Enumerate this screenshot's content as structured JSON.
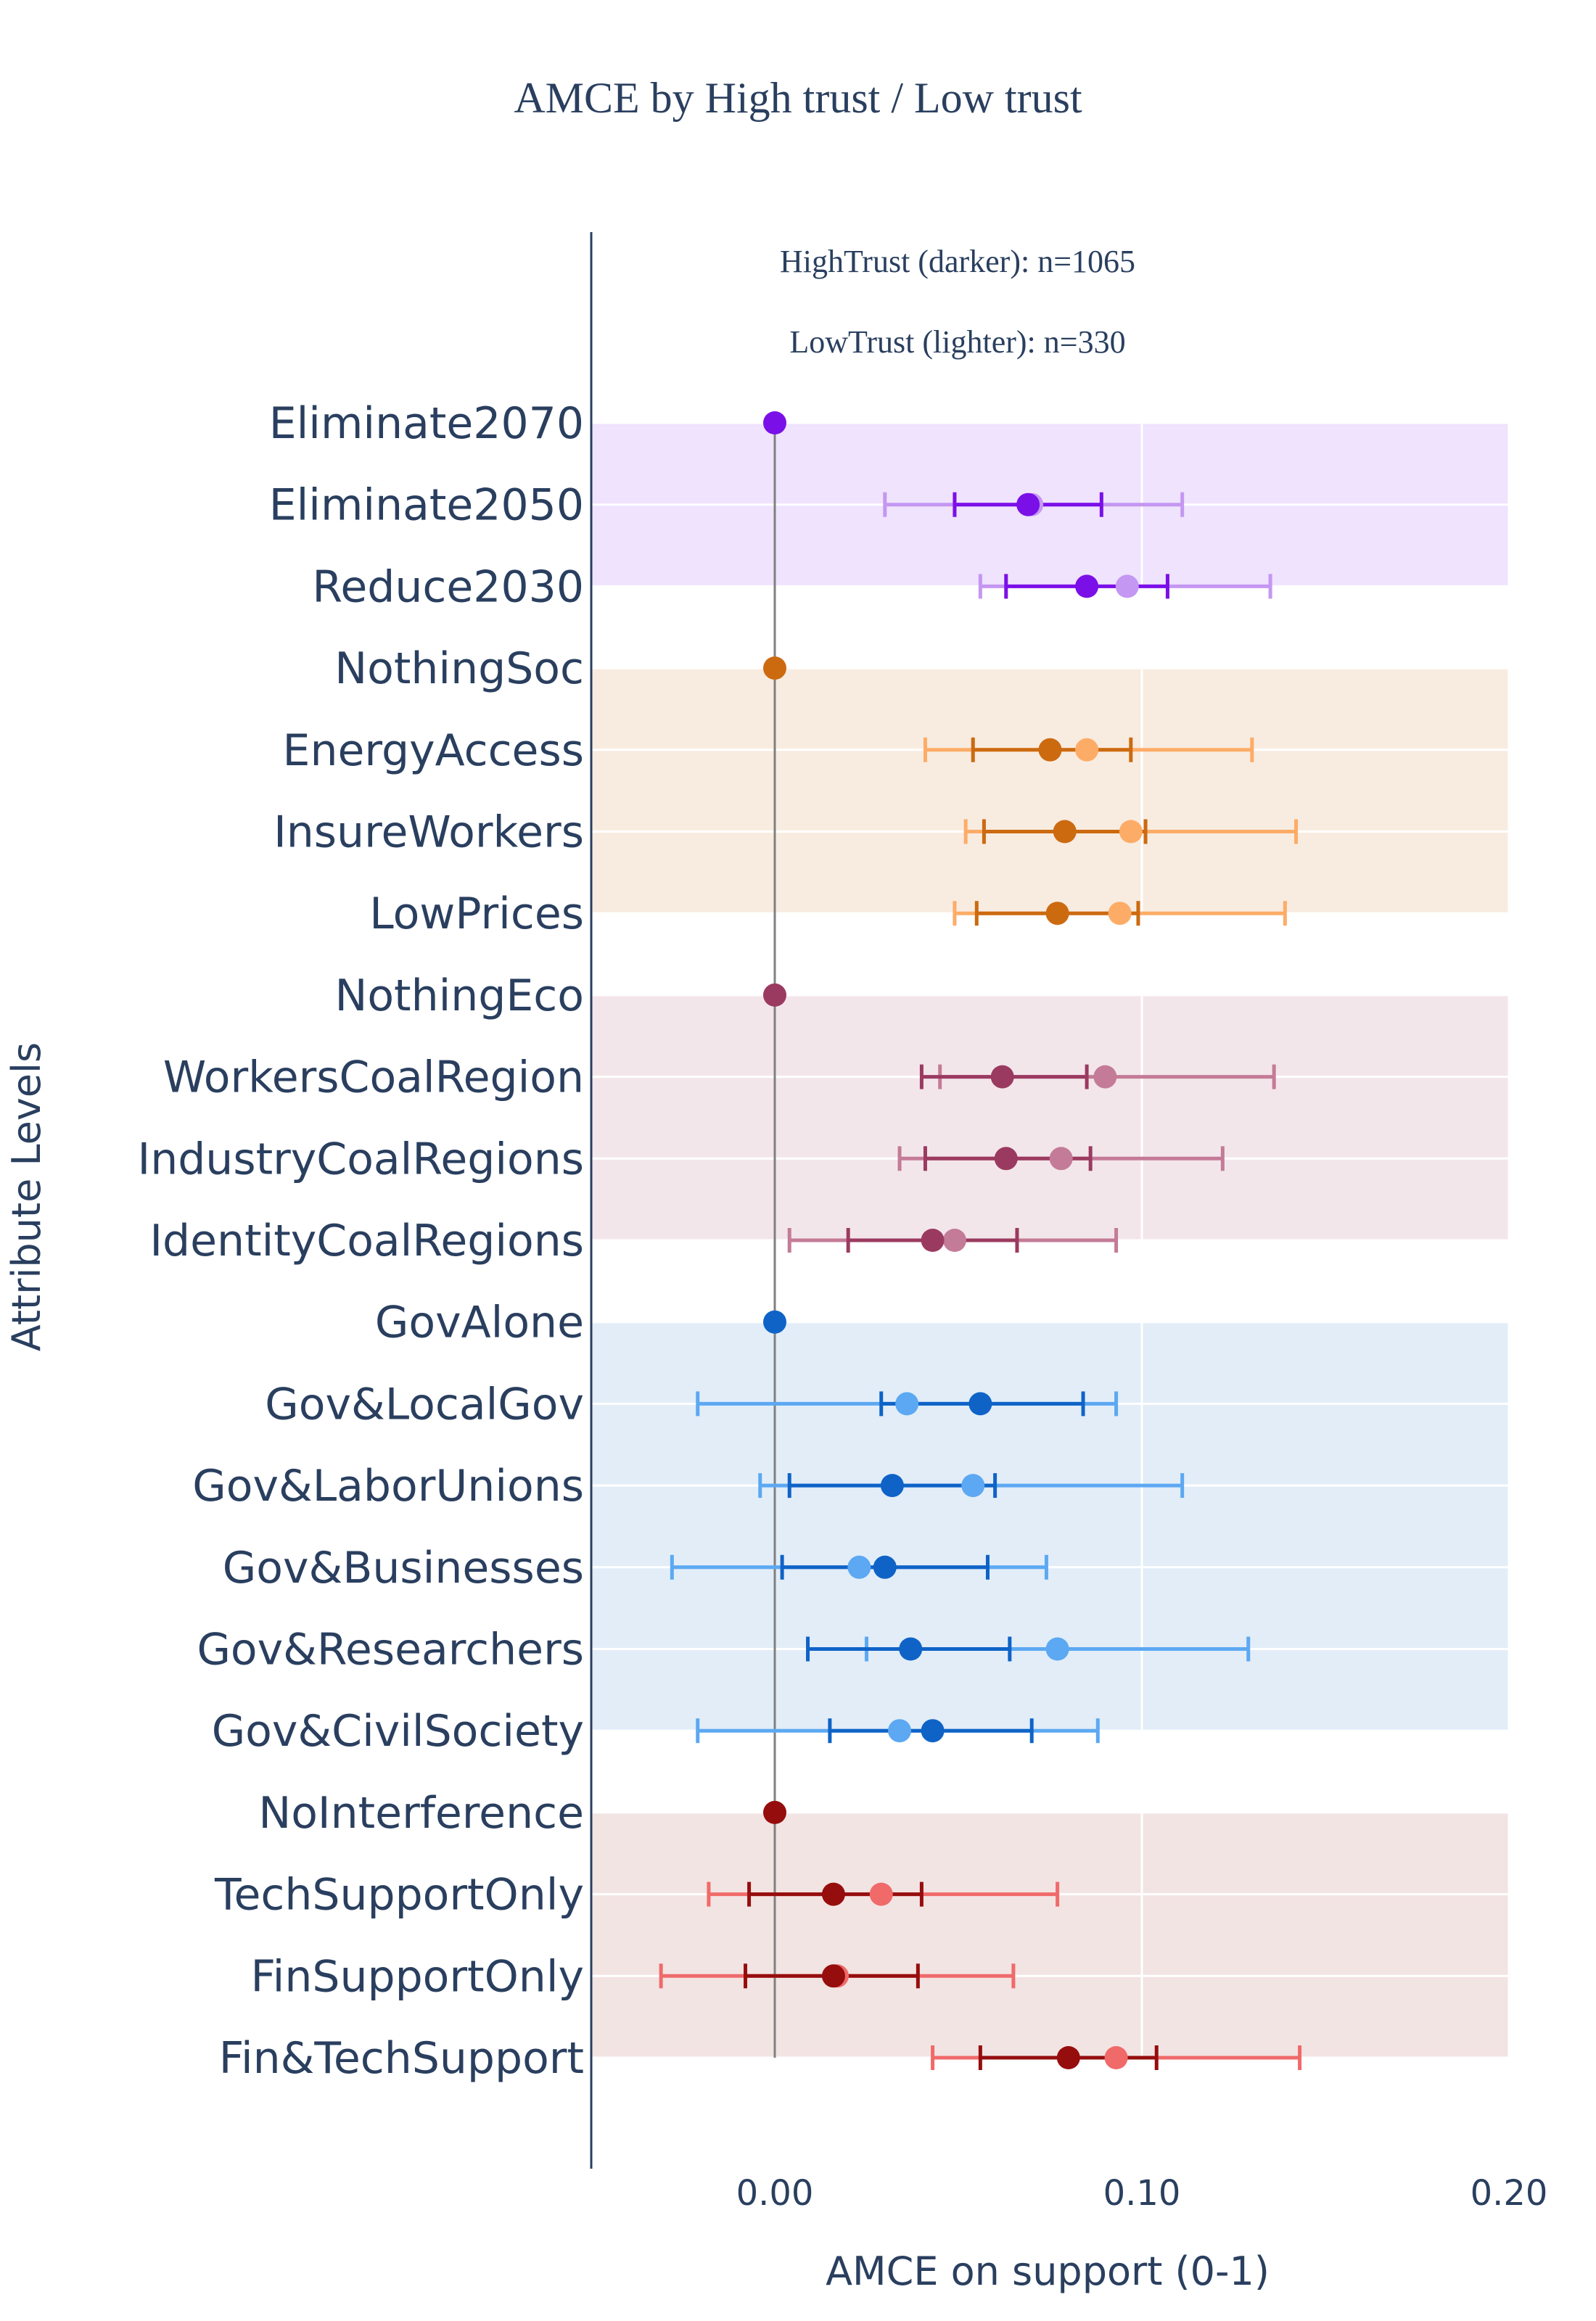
{
  "chart_data": {
    "type": "scatter",
    "title": "AMCE by High trust / Low trust",
    "xlabel": "AMCE on support (0-1)",
    "ylabel": "Attribute Levels",
    "xlim": [
      -0.05,
      0.2
    ],
    "xticks": [
      "0.00",
      "0.10",
      "0.20"
    ],
    "xtick_values": [
      0,
      0.1,
      0.2
    ],
    "annotations": [
      "HighTrust (darker): n=1065",
      "LowTrust (lighter): n=330"
    ],
    "grid": true,
    "levels": [
      "Eliminate2070",
      "Eliminate2050",
      "Reduce2030",
      "NothingSoc",
      "EnergyAccess",
      "InsureWorkers",
      "LowPrices",
      "NothingEco",
      "WorkersCoalRegion",
      "IndustryCoalRegions",
      "IdentityCoalRegions",
      "GovAlone",
      "Gov&LocalGov",
      "Gov&LaborUnions",
      "Gov&Businesses",
      "Gov&Researchers",
      "Gov&CivilSociety",
      "NoInterference",
      "TechSupportOnly",
      "FinSupportOnly",
      "Fin&TechSupport"
    ],
    "groups": [
      {
        "levels": [
          "Eliminate2070",
          "Eliminate2050",
          "Reduce2030"
        ],
        "band_color": "#efe3fd",
        "dark": "#7b0fe8",
        "light": "#c497f2"
      },
      {
        "levels": [
          "NothingSoc",
          "EnergyAccess",
          "InsureWorkers",
          "LowPrices"
        ],
        "band_color": "#f8ece1",
        "dark": "#cc6a10",
        "light": "#fdac67"
      },
      {
        "levels": [
          "NothingEco",
          "WorkersCoalRegion",
          "IndustryCoalRegions",
          "IdentityCoalRegions"
        ],
        "band_color": "#f3e6ea",
        "dark": "#9b3a60",
        "light": "#c47b97"
      },
      {
        "levels": [
          "GovAlone",
          "Gov&LocalGov",
          "Gov&LaborUnions",
          "Gov&Businesses",
          "Gov&Researchers",
          "Gov&CivilSociety"
        ],
        "band_color": "#e2edf8",
        "dark": "#0f63c7",
        "light": "#5ca8f2"
      },
      {
        "levels": [
          "NoInterference",
          "TechSupportOnly",
          "FinSupportOnly",
          "Fin&TechSupport"
        ],
        "band_color": "#f2e4e3",
        "dark": "#960d0d",
        "light": "#f06a6a"
      }
    ],
    "series": [
      {
        "name": "HighTrust",
        "points": [
          {
            "level": "Eliminate2070",
            "est": 0.0
          },
          {
            "level": "Eliminate2050",
            "est": 0.069,
            "lo": 0.049,
            "hi": 0.089
          },
          {
            "level": "Reduce2030",
            "est": 0.085,
            "lo": 0.063,
            "hi": 0.107
          },
          {
            "level": "NothingSoc",
            "est": 0.0
          },
          {
            "level": "EnergyAccess",
            "est": 0.075,
            "lo": 0.054,
            "hi": 0.097
          },
          {
            "level": "InsureWorkers",
            "est": 0.079,
            "lo": 0.057,
            "hi": 0.101
          },
          {
            "level": "LowPrices",
            "est": 0.077,
            "lo": 0.055,
            "hi": 0.099
          },
          {
            "level": "NothingEco",
            "est": 0.0
          },
          {
            "level": "WorkersCoalRegion",
            "est": 0.062,
            "lo": 0.04,
            "hi": 0.085
          },
          {
            "level": "IndustryCoalRegions",
            "est": 0.063,
            "lo": 0.041,
            "hi": 0.086
          },
          {
            "level": "IdentityCoalRegions",
            "est": 0.043,
            "lo": 0.02,
            "hi": 0.066
          },
          {
            "level": "GovAlone",
            "est": 0.0
          },
          {
            "level": "Gov&LocalGov",
            "est": 0.056,
            "lo": 0.029,
            "hi": 0.084
          },
          {
            "level": "Gov&LaborUnions",
            "est": 0.032,
            "lo": 0.004,
            "hi": 0.06
          },
          {
            "level": "Gov&Businesses",
            "est": 0.03,
            "lo": 0.002,
            "hi": 0.058
          },
          {
            "level": "Gov&Researchers",
            "est": 0.037,
            "lo": 0.009,
            "hi": 0.064
          },
          {
            "level": "Gov&CivilSociety",
            "est": 0.043,
            "lo": 0.015,
            "hi": 0.07
          },
          {
            "level": "NoInterference",
            "est": 0.0
          },
          {
            "level": "TechSupportOnly",
            "est": 0.016,
            "lo": -0.007,
            "hi": 0.04
          },
          {
            "level": "FinSupportOnly",
            "est": 0.016,
            "lo": -0.008,
            "hi": 0.039
          },
          {
            "level": "Fin&TechSupport",
            "est": 0.08,
            "lo": 0.056,
            "hi": 0.104
          }
        ]
      },
      {
        "name": "LowTrust",
        "points": [
          {
            "level": "Eliminate2050",
            "est": 0.07,
            "lo": 0.03,
            "hi": 0.111
          },
          {
            "level": "Reduce2030",
            "est": 0.096,
            "lo": 0.056,
            "hi": 0.135
          },
          {
            "level": "EnergyAccess",
            "est": 0.085,
            "lo": 0.041,
            "hi": 0.13
          },
          {
            "level": "InsureWorkers",
            "est": 0.097,
            "lo": 0.052,
            "hi": 0.142
          },
          {
            "level": "LowPrices",
            "est": 0.094,
            "lo": 0.049,
            "hi": 0.139
          },
          {
            "level": "WorkersCoalRegion",
            "est": 0.09,
            "lo": 0.045,
            "hi": 0.136
          },
          {
            "level": "IndustryCoalRegions",
            "est": 0.078,
            "lo": 0.034,
            "hi": 0.122
          },
          {
            "level": "IdentityCoalRegions",
            "est": 0.049,
            "lo": 0.004,
            "hi": 0.093
          },
          {
            "level": "Gov&LocalGov",
            "est": 0.036,
            "lo": -0.021,
            "hi": 0.093
          },
          {
            "level": "Gov&LaborUnions",
            "est": 0.054,
            "lo": -0.004,
            "hi": 0.111
          },
          {
            "level": "Gov&Businesses",
            "est": 0.023,
            "lo": -0.028,
            "hi": 0.074
          },
          {
            "level": "Gov&Researchers",
            "est": 0.077,
            "lo": 0.025,
            "hi": 0.129
          },
          {
            "level": "Gov&CivilSociety",
            "est": 0.034,
            "lo": -0.021,
            "hi": 0.088
          },
          {
            "level": "TechSupportOnly",
            "est": 0.029,
            "lo": -0.018,
            "hi": 0.077
          },
          {
            "level": "FinSupportOnly",
            "est": 0.017,
            "lo": -0.031,
            "hi": 0.065
          },
          {
            "level": "Fin&TechSupport",
            "est": 0.093,
            "lo": 0.043,
            "hi": 0.143
          }
        ]
      }
    ]
  }
}
